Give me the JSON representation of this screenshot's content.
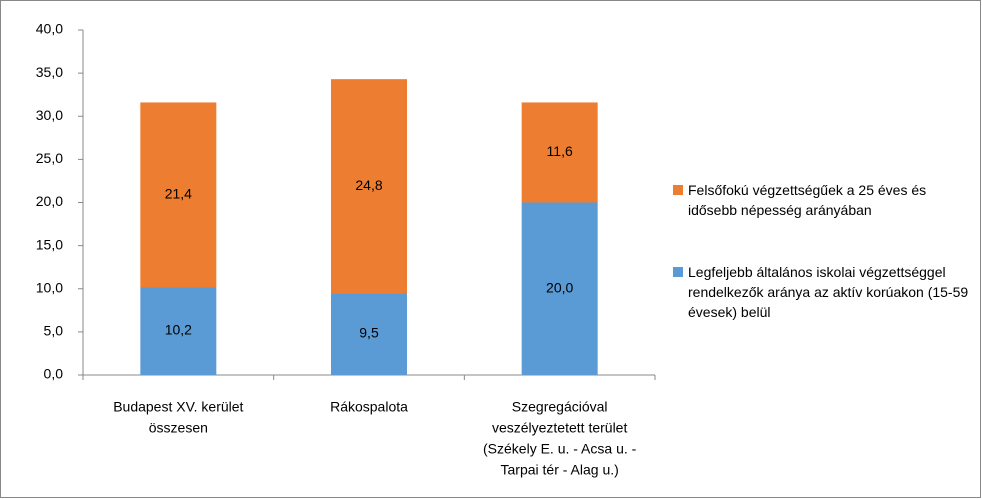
{
  "chart_data": {
    "type": "stacked_bar",
    "categories": [
      [
        "Budapest XV. kerület",
        "összesen"
      ],
      [
        "Rákospalota"
      ],
      [
        "Szegregációval",
        "veszélyeztetett terület",
        "(Székely E. u. - Acsa u. -",
        "Tarpai tér - Alag u.)"
      ]
    ],
    "series": [
      {
        "name": "Legfeljebb általános iskolai végzettséggel rendelkezők aránya az aktív korúakon (15-59 évesek) belül",
        "color": "#5b9bd5",
        "values": [
          10.2,
          9.5,
          20.0
        ],
        "value_labels": [
          "10,2",
          "9,5",
          "20,0"
        ]
      },
      {
        "name": "Felsőfokú végzettségűek a 25 éves és idősebb népesség arányában",
        "color": "#ed7d31",
        "values": [
          21.4,
          24.8,
          11.6
        ],
        "value_labels": [
          "21,4",
          "24,8",
          "11,6"
        ]
      }
    ],
    "ylim": [
      0,
      40
    ],
    "yticks": [
      {
        "value": 0,
        "label": "0,0"
      },
      {
        "value": 5,
        "label": "5,0"
      },
      {
        "value": 10,
        "label": "10,0"
      },
      {
        "value": 15,
        "label": "15,0"
      },
      {
        "value": 20,
        "label": "20,0"
      },
      {
        "value": 25,
        "label": "25,0"
      },
      {
        "value": 30,
        "label": "30,0"
      },
      {
        "value": 35,
        "label": "35,0"
      },
      {
        "value": 40,
        "label": "40,0"
      }
    ],
    "grid": false,
    "legend": "right"
  }
}
